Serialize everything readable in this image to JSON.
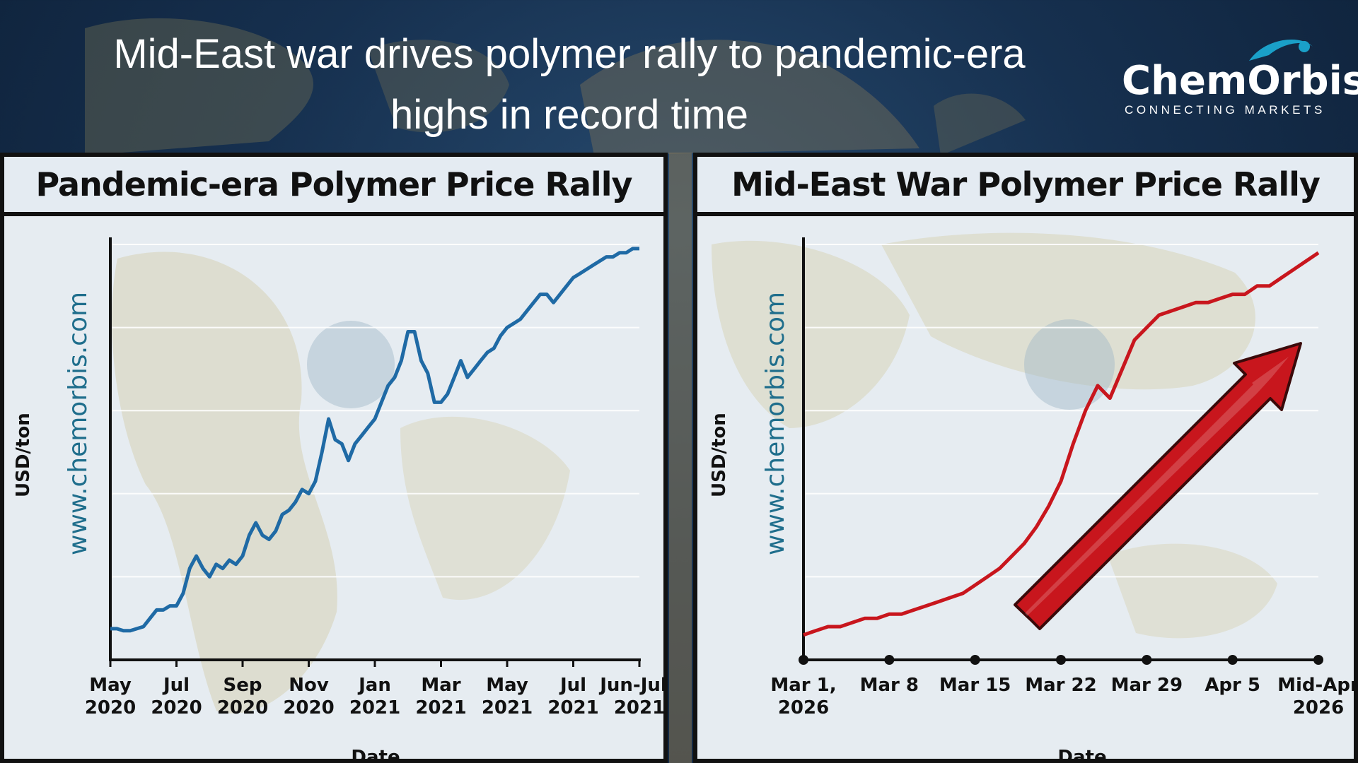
{
  "headline": {
    "line1": "Mid-East war drives polymer rally to pandemic-era",
    "line2": "highs in record time"
  },
  "logo": {
    "wordmark": "ChemOrbis",
    "tagline": "CONNECTING MARKETS"
  },
  "colors": {
    "pandemic_line": "#1f6aa5",
    "war_line": "#c8161d",
    "arrow": "#c8161d"
  },
  "chart_data": [
    {
      "type": "line",
      "title": "Pandemic-era Polymer Price Rally",
      "watermark": "www.chemorbis.com",
      "xlabel": "Date",
      "ylabel": "USD/ton",
      "ylim": [
        0,
        100
      ],
      "grid": true,
      "x_ticks": [
        {
          "line1": "May",
          "line2": "2020",
          "pos": 0
        },
        {
          "line1": "Jul",
          "line2": "2020",
          "pos": 2
        },
        {
          "line1": "Sep",
          "line2": "2020",
          "pos": 4
        },
        {
          "line1": "Nov",
          "line2": "2020",
          "pos": 6
        },
        {
          "line1": "Jan",
          "line2": "2021",
          "pos": 8
        },
        {
          "line1": "Mar",
          "line2": "2021",
          "pos": 10
        },
        {
          "line1": "May",
          "line2": "2021",
          "pos": 12
        },
        {
          "line1": "Jul",
          "line2": "2021",
          "pos": 14
        },
        {
          "line1": "Jun-July",
          "line2": "2021",
          "pos": 16
        }
      ],
      "series": [
        {
          "x": [
            0,
            0.2,
            0.4,
            0.6,
            0.8,
            1.0,
            1.2,
            1.4,
            1.6,
            1.8,
            2.0,
            2.2,
            2.4,
            2.6,
            2.8,
            3.0,
            3.2,
            3.4,
            3.6,
            3.8,
            4.0,
            4.2,
            4.4,
            4.6,
            4.8,
            5.0,
            5.2,
            5.4,
            5.6,
            5.8,
            6.0,
            6.2,
            6.4,
            6.6,
            6.8,
            7.0,
            7.2,
            7.4,
            7.6,
            7.8,
            8.0,
            8.2,
            8.4,
            8.6,
            8.8,
            9.0,
            9.2,
            9.4,
            9.6,
            9.8,
            10.0,
            10.2,
            10.4,
            10.6,
            10.8,
            11.0,
            11.2,
            11.4,
            11.6,
            11.8,
            12.0,
            12.2,
            12.4,
            12.6,
            12.8,
            13.0,
            13.2,
            13.4,
            13.6,
            13.8,
            14.0,
            14.2,
            14.4,
            14.6,
            14.8,
            15.0,
            15.2,
            15.4,
            15.6,
            15.8,
            16.0
          ],
          "y": [
            7.5,
            7.5,
            7,
            7,
            7.5,
            8,
            10,
            12,
            12,
            13,
            13,
            16,
            22,
            25,
            22,
            20,
            23,
            22,
            24,
            23,
            25,
            30,
            33,
            30,
            29,
            31,
            35,
            36,
            38,
            41,
            40,
            43,
            50,
            58,
            53,
            52,
            48,
            52,
            54,
            56,
            58,
            62,
            66,
            68,
            72,
            79,
            79,
            72,
            69,
            62,
            62,
            64,
            68,
            72,
            68,
            70,
            72,
            74,
            75,
            78,
            80,
            81,
            82,
            84,
            86,
            88,
            88,
            86,
            88,
            90,
            92,
            93,
            94,
            95,
            96,
            97,
            97,
            98,
            98,
            99,
            99
          ]
        }
      ]
    },
    {
      "type": "line",
      "title": "Mid-East War Polymer Price Rally",
      "watermark": "www.chemorbis.com",
      "xlabel": "Date",
      "ylabel": "USD/ton",
      "ylim": [
        0,
        100
      ],
      "grid": true,
      "x_ticks": [
        {
          "line1": "Mar 1,",
          "line2": "2026",
          "pos": 0
        },
        {
          "line1": "Mar 8",
          "line2": "",
          "pos": 7
        },
        {
          "line1": "Mar 15",
          "line2": "",
          "pos": 14
        },
        {
          "line1": "Mar 22",
          "line2": "",
          "pos": 21
        },
        {
          "line1": "Mar 29",
          "line2": "",
          "pos": 28
        },
        {
          "line1": "Apr 5",
          "line2": "",
          "pos": 35
        },
        {
          "line1": "Mid-Apr",
          "line2": "2026",
          "pos": 42
        }
      ],
      "series": [
        {
          "x": [
            0,
            1,
            2,
            3,
            4,
            5,
            6,
            7,
            8,
            9,
            10,
            11,
            12,
            13,
            14,
            15,
            16,
            17,
            18,
            19,
            20,
            21,
            22,
            23,
            24,
            25,
            26,
            27,
            28,
            29,
            30,
            31,
            32,
            33,
            34,
            35,
            36,
            37,
            38,
            39,
            40,
            41,
            42
          ],
          "y": [
            6,
            7,
            8,
            8,
            9,
            10,
            10,
            11,
            11,
            12,
            13,
            14,
            15,
            16,
            18,
            20,
            22,
            25,
            28,
            32,
            37,
            43,
            52,
            60,
            66,
            63,
            70,
            77,
            80,
            83,
            84,
            85,
            86,
            86,
            87,
            88,
            88,
            90,
            90,
            92,
            94,
            96,
            98
          ]
        }
      ]
    }
  ]
}
